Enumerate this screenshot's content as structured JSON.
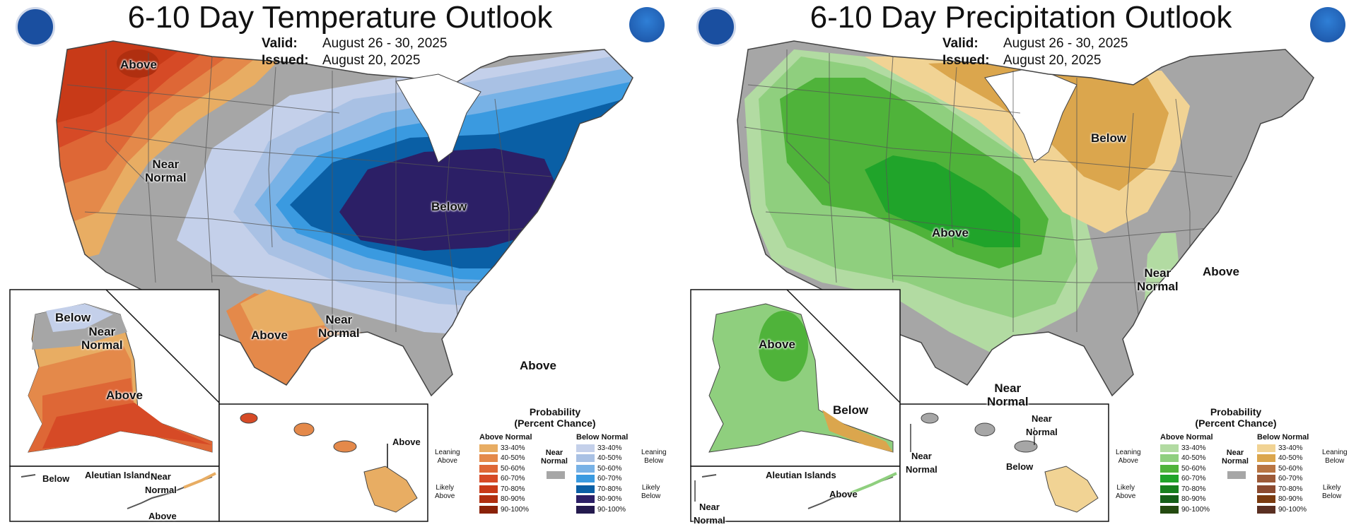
{
  "panels": [
    {
      "title": "6-10 Day Temperature Outlook",
      "valid_label": "Valid:",
      "valid_value": "August 26 - 30, 2025",
      "issued_label": "Issued:",
      "issued_value": "August 20, 2025",
      "map_labels": [
        "Above",
        "Near\nNormal",
        "Below",
        "Above",
        "Near\nNormal",
        "Above"
      ],
      "inset_labels": {
        "alaska": [
          "Below",
          "Near\nNormal",
          "Above"
        ],
        "aleutian_title": "Aleutian Islands",
        "aleutian": [
          "Below",
          "Near\nNormal",
          "Above"
        ],
        "hawaii": [
          "Above"
        ]
      },
      "legend": {
        "title": "Probability\n(Percent Chance)",
        "above_header": "Above Normal",
        "below_header": "Below Normal",
        "near_label": "Near\nNormal",
        "leaning_above": "Leaning\nAbove",
        "likely_above": "Likely\nAbove",
        "leaning_below": "Leaning\nBelow",
        "likely_below": "Likely\nBelow",
        "ranges": [
          "33-40%",
          "40-50%",
          "50-60%",
          "60-70%",
          "70-80%",
          "80-90%",
          "90-100%"
        ],
        "above_colors": [
          "#e8ad63",
          "#e4894a",
          "#de6736",
          "#d64a26",
          "#c83a18",
          "#b02f10",
          "#8a2208"
        ],
        "below_colors": [
          "#c4d0ea",
          "#a9c1e4",
          "#78b2e6",
          "#3a9ae0",
          "#0a5fa5",
          "#2c1f66",
          "#241a4e"
        ],
        "near_color": "#a6a6a6"
      }
    },
    {
      "title": "6-10 Day Precipitation Outlook",
      "valid_label": "Valid:",
      "valid_value": "August 26 - 30, 2025",
      "issued_label": "Issued:",
      "issued_value": "August 20, 2025",
      "map_labels": [
        "Below",
        "Above",
        "Near\nNormal",
        "Above",
        "Near\nNormal"
      ],
      "inset_labels": {
        "alaska": [
          "Above",
          "Below"
        ],
        "aleutian_title": "Aleutian Islands",
        "aleutian": [
          "Near\nNormal",
          "Above"
        ],
        "hawaii": [
          "Near\nNormal",
          "Near\nNormal",
          "Below"
        ]
      },
      "legend": {
        "title": "Probability\n(Percent Chance)",
        "above_header": "Above Normal",
        "below_header": "Below Normal",
        "near_label": "Near\nNormal",
        "leaning_above": "Leaning\nAbove",
        "likely_above": "Likely\nAbove",
        "leaning_below": "Leaning\nBelow",
        "likely_below": "Likely\nBelow",
        "ranges": [
          "33-40%",
          "40-50%",
          "50-60%",
          "60-70%",
          "70-80%",
          "80-90%",
          "90-100%"
        ],
        "above_colors": [
          "#b2dba2",
          "#8fcf7e",
          "#4fb33a",
          "#20a42a",
          "#17801e",
          "#155f18",
          "#244a10"
        ],
        "below_colors": [
          "#f1d394",
          "#dba64d",
          "#b87543",
          "#9c5a38",
          "#8b4a30",
          "#7a3b10",
          "#5a2f22"
        ],
        "near_color": "#a6a6a6"
      }
    }
  ],
  "colors": {
    "near_normal": "#a6a6a6",
    "boundary": "#555555",
    "noaa_blue": "#1a4fa0"
  },
  "icons": [
    "doc-seal-icon",
    "noaa-logo-icon"
  ]
}
